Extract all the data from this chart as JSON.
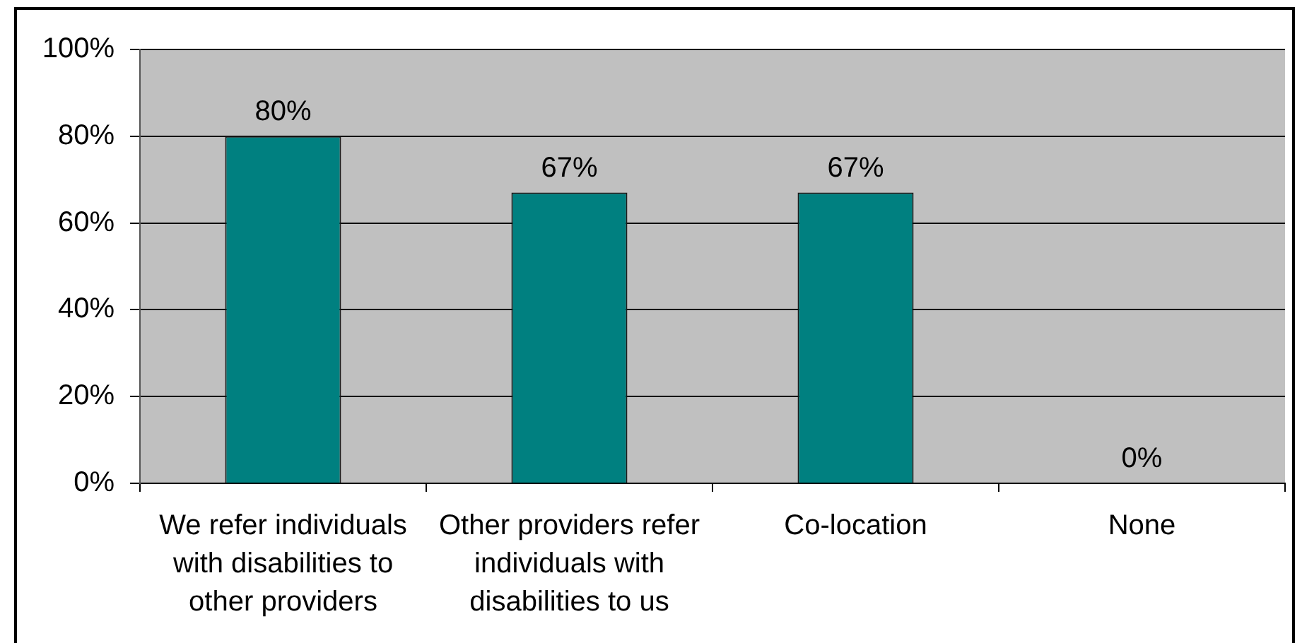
{
  "chart_data": {
    "type": "bar",
    "categories": [
      "We refer individuals with disabilities to other providers",
      "Other providers refer individuals with disabilities to us",
      "Co-location",
      "None"
    ],
    "values": [
      80,
      67,
      67,
      0
    ],
    "value_labels": [
      "80%",
      "67%",
      "67%",
      "0%"
    ],
    "color": "#008080",
    "ylim": [
      0,
      100
    ],
    "yticks": [
      {
        "value": 0,
        "label": "0%"
      },
      {
        "value": 20,
        "label": "20%"
      },
      {
        "value": 40,
        "label": "40%"
      },
      {
        "value": 60,
        "label": "60%"
      },
      {
        "value": 80,
        "label": "80%"
      },
      {
        "value": 100,
        "label": "100%"
      }
    ],
    "grid": "y"
  }
}
